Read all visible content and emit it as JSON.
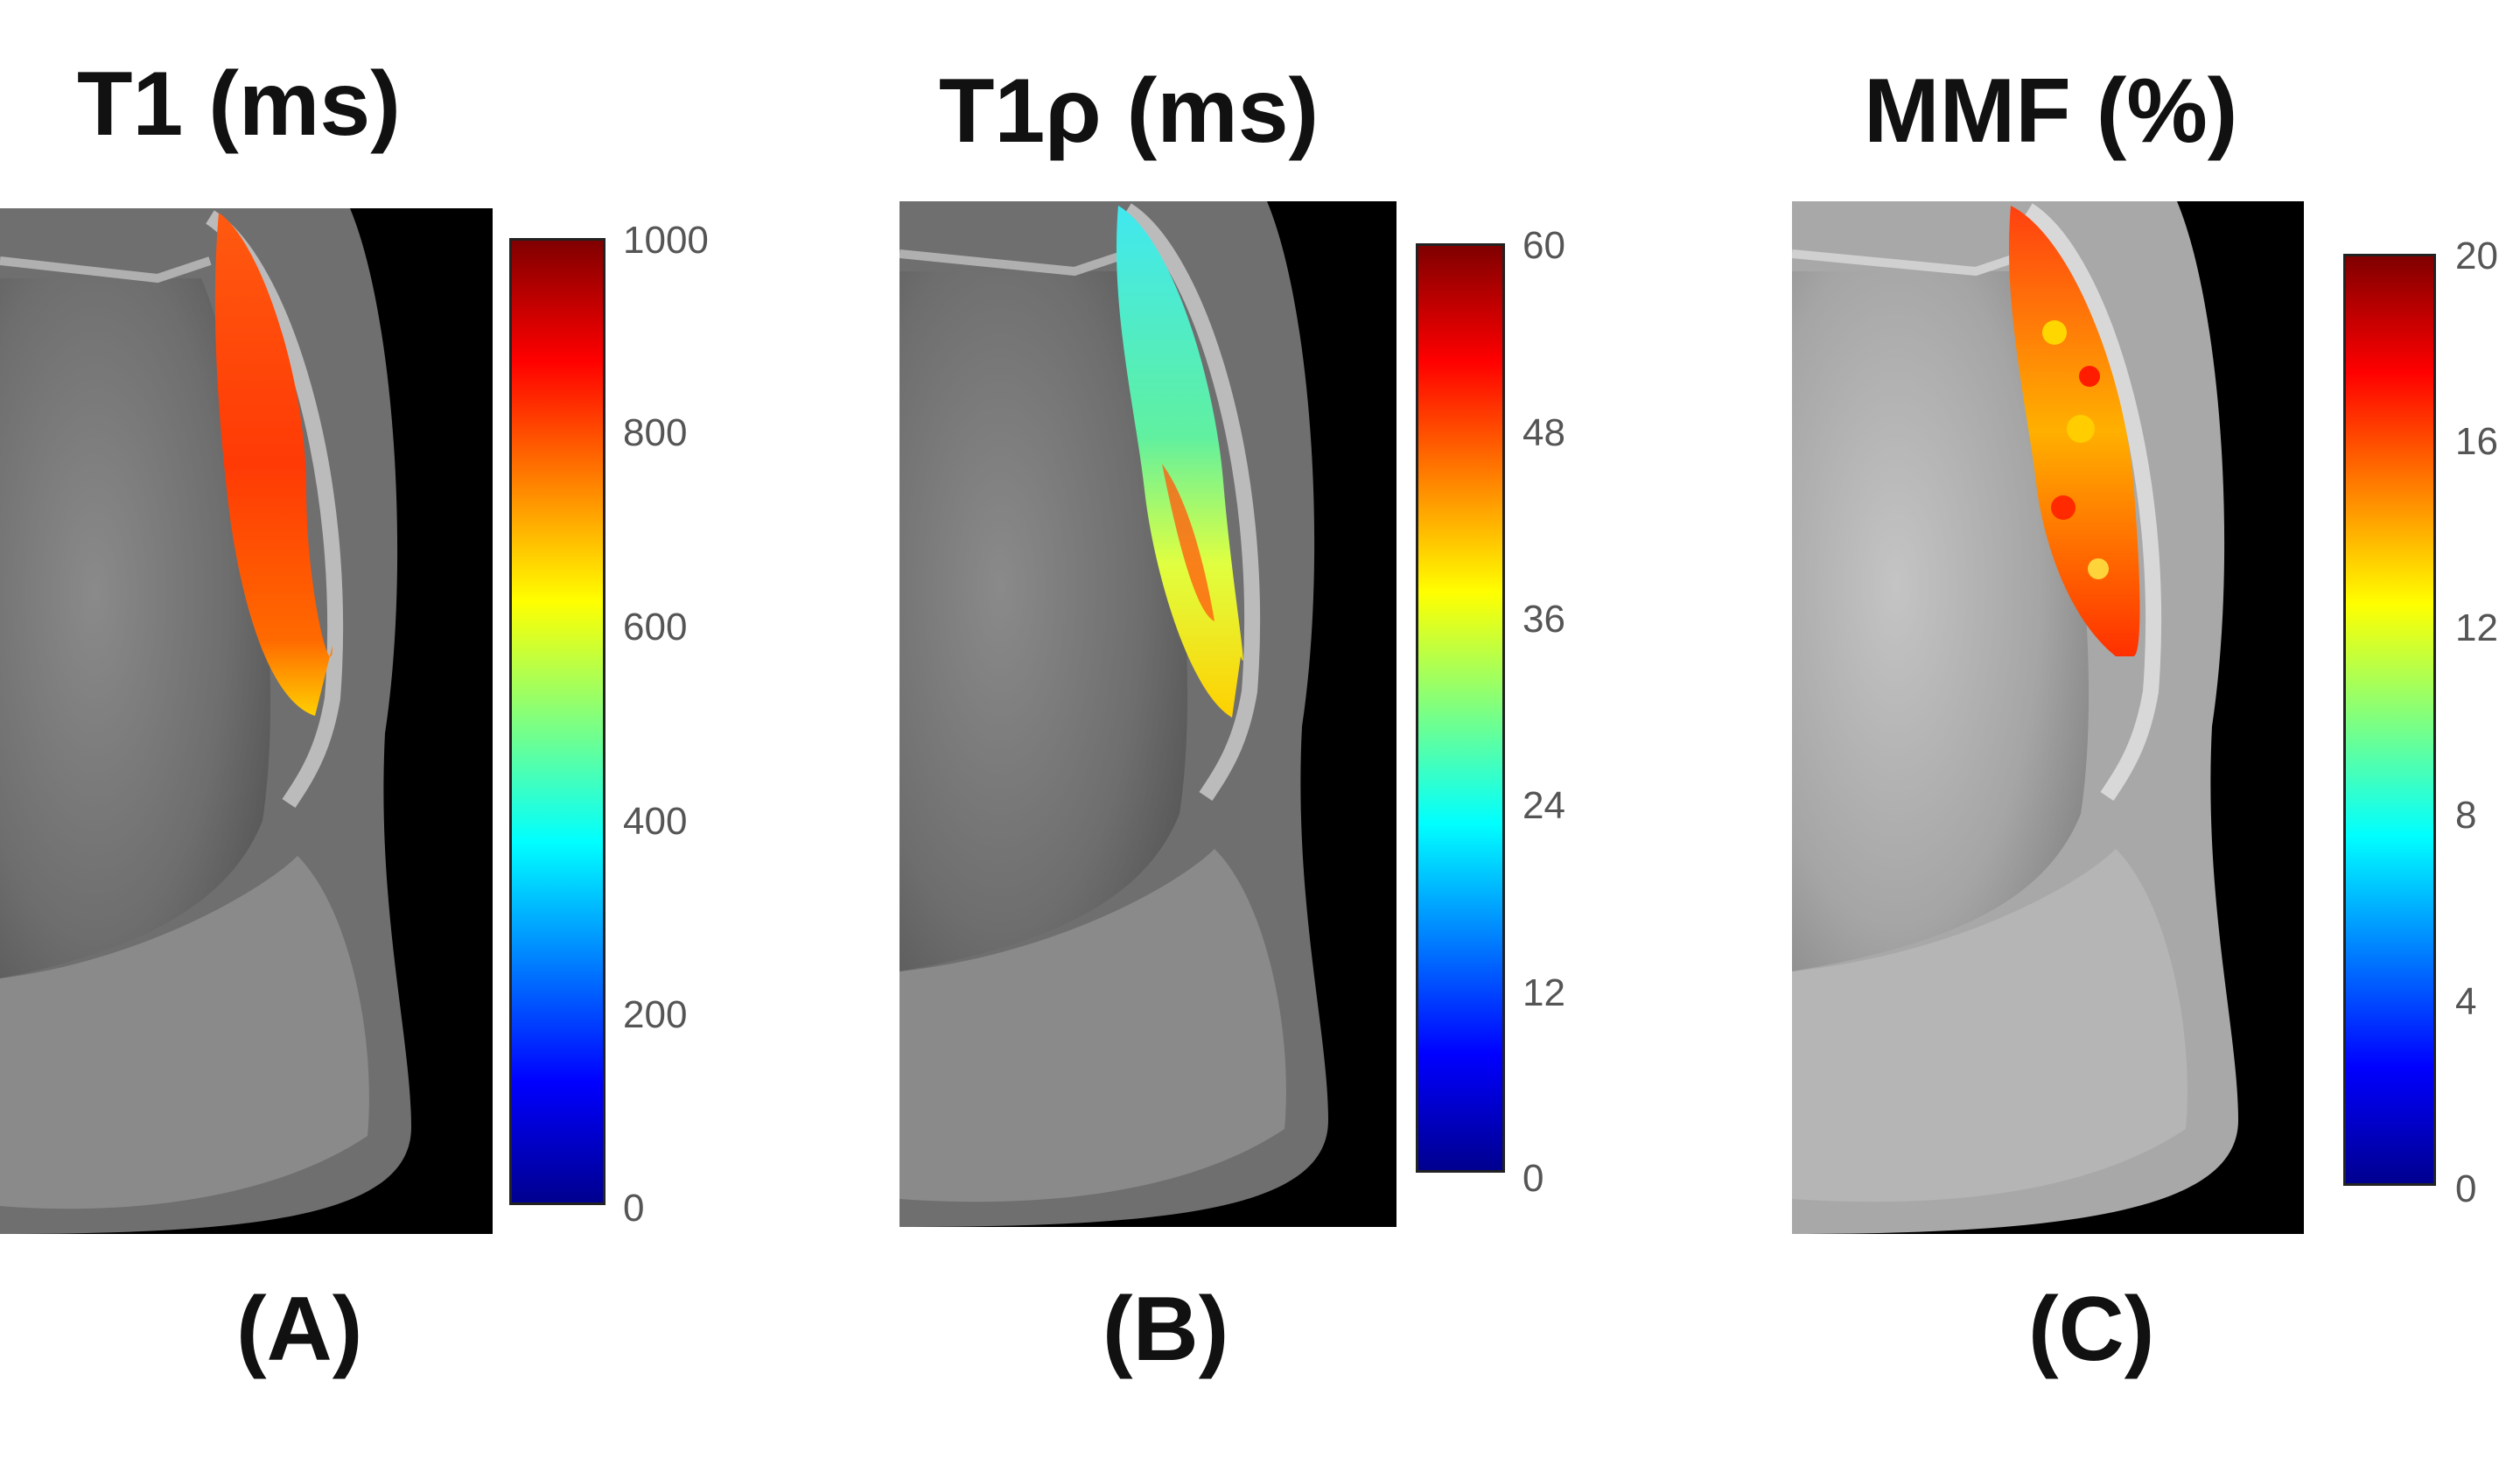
{
  "panels": [
    {
      "title": "T1 (ms)",
      "label": "(A)",
      "colorbar_ticks": [
        "1000",
        "800",
        "600",
        "400",
        "200",
        "0"
      ],
      "overlay": "orange-red"
    },
    {
      "title": "T1ρ (ms)",
      "label": "(B)",
      "colorbar_ticks": [
        "60",
        "48",
        "36",
        "24",
        "12",
        "0"
      ],
      "overlay": "cyan-green"
    },
    {
      "title": "MMF (%)",
      "label": "(C)",
      "colorbar_ticks": [
        "20",
        "16",
        "12",
        "8",
        "4",
        "0"
      ],
      "overlay": "red-yellow"
    }
  ],
  "colormap": "jet"
}
